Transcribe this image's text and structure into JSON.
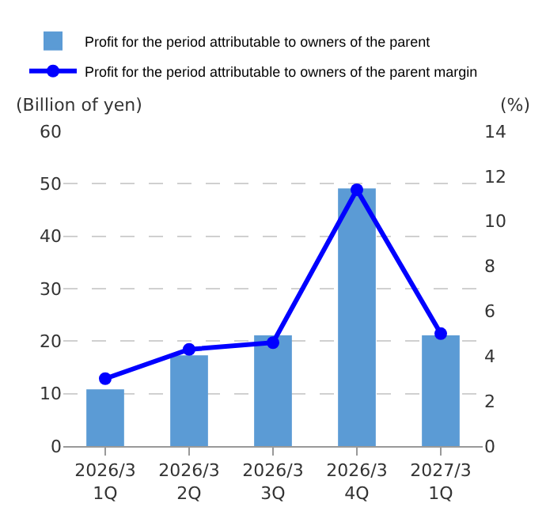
{
  "chart_data": {
    "type": "bar",
    "categories": [
      "2026/3\n1Q",
      "2026/3\n2Q",
      "2026/3\n3Q",
      "2026/3\n4Q",
      "2027/3\n1Q"
    ],
    "series": [
      {
        "name": "Profit for the period attributable to owners of the parent",
        "color": "#5b9bd5",
        "values": [
          10.8,
          17.3,
          21.1,
          49.1,
          21.1
        ]
      },
      {
        "name": "Profit for the period attributable to owners of the parent margin",
        "type": "line",
        "axis": "y2",
        "color": "#0000ff",
        "marker": "circle",
        "values": [
          3.0,
          4.3,
          4.6,
          11.4,
          5.0
        ]
      }
    ],
    "ylabel": "(Billion of yen)",
    "y2label": "(%)",
    "ylim": [
      0,
      60
    ],
    "yticks": [
      0,
      10,
      20,
      30,
      40,
      50,
      60
    ],
    "y2lim": [
      0,
      14
    ],
    "y2ticks": [
      0,
      2,
      4,
      6,
      8,
      10,
      12,
      14
    ],
    "grid": "y",
    "legend": "top"
  }
}
